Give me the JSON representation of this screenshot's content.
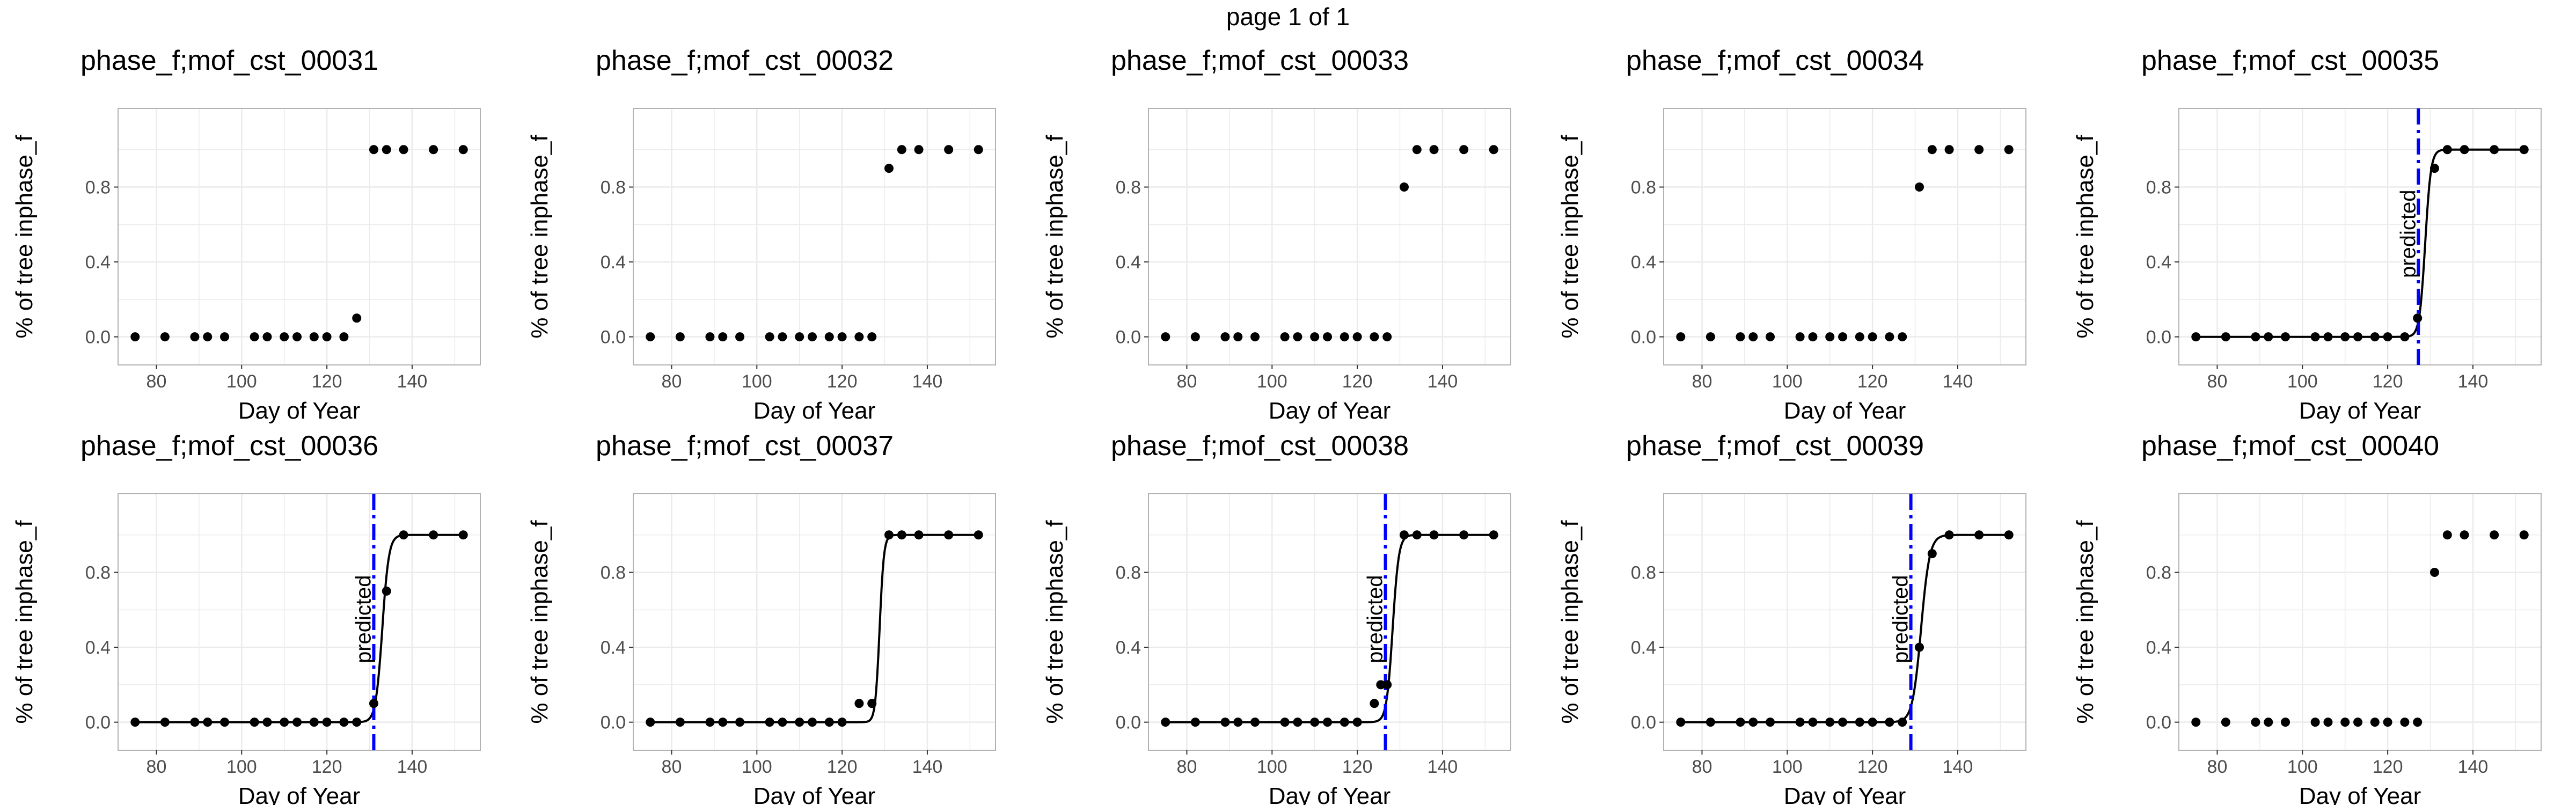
{
  "page_title": "page 1 of 1",
  "colors": {
    "points": "#000000",
    "fit_line": "#000000",
    "prediction_line": "#0000ff",
    "grid": "#ebebeb",
    "panel_border": "#b3b3b3"
  },
  "chart_data": [
    {
      "type": "scatter",
      "title": "phase_f;mof_cst_00031",
      "xlabel": "Day of Year",
      "ylabel": "% of tree inphase_f",
      "xlim": [
        71,
        156
      ],
      "ylim": [
        -0.15,
        1.22
      ],
      "xticks": [
        80,
        100,
        120,
        140
      ],
      "yticks": [
        "0.0",
        "0.4",
        "0.8"
      ],
      "x": [
        75,
        82,
        89,
        92,
        96,
        103,
        106,
        110,
        113,
        117,
        120,
        124,
        127,
        131,
        134,
        138,
        145,
        152
      ],
      "y": [
        0,
        0,
        0,
        0,
        0,
        0,
        0,
        0,
        0,
        0,
        0,
        0,
        0.1,
        1,
        1,
        1,
        1,
        1
      ],
      "fit": false,
      "predicted_day": null,
      "predicted_label": ""
    },
    {
      "type": "scatter",
      "title": "phase_f;mof_cst_00032",
      "xlabel": "Day of Year",
      "ylabel": "% of tree inphase_f",
      "xlim": [
        71,
        156
      ],
      "ylim": [
        -0.15,
        1.22
      ],
      "xticks": [
        80,
        100,
        120,
        140
      ],
      "yticks": [
        "0.0",
        "0.4",
        "0.8"
      ],
      "x": [
        75,
        82,
        89,
        92,
        96,
        103,
        106,
        110,
        113,
        117,
        120,
        124,
        127,
        131,
        134,
        138,
        145,
        152
      ],
      "y": [
        0,
        0,
        0,
        0,
        0,
        0,
        0,
        0,
        0,
        0,
        0,
        0,
        0,
        0.9,
        1,
        1,
        1,
        1
      ],
      "fit": false,
      "predicted_day": null,
      "predicted_label": ""
    },
    {
      "type": "scatter",
      "title": "phase_f;mof_cst_00033",
      "xlabel": "Day of Year",
      "ylabel": "% of tree inphase_f",
      "xlim": [
        71,
        156
      ],
      "ylim": [
        -0.15,
        1.22
      ],
      "xticks": [
        80,
        100,
        120,
        140
      ],
      "yticks": [
        "0.0",
        "0.4",
        "0.8"
      ],
      "x": [
        75,
        82,
        89,
        92,
        96,
        103,
        106,
        110,
        113,
        117,
        120,
        124,
        127,
        131,
        134,
        138,
        145,
        152
      ],
      "y": [
        0,
        0,
        0,
        0,
        0,
        0,
        0,
        0,
        0,
        0,
        0,
        0,
        0,
        0.8,
        1,
        1,
        1,
        1
      ],
      "fit": false,
      "predicted_day": null,
      "predicted_label": ""
    },
    {
      "type": "scatter",
      "title": "phase_f;mof_cst_00034",
      "xlabel": "Day of Year",
      "ylabel": "% of tree inphase_f",
      "xlim": [
        71,
        156
      ],
      "ylim": [
        -0.15,
        1.22
      ],
      "xticks": [
        80,
        100,
        120,
        140
      ],
      "yticks": [
        "0.0",
        "0.4",
        "0.8"
      ],
      "x": [
        75,
        82,
        89,
        92,
        96,
        103,
        106,
        110,
        113,
        117,
        120,
        124,
        127,
        131,
        134,
        138,
        145,
        152
      ],
      "y": [
        0,
        0,
        0,
        0,
        0,
        0,
        0,
        0,
        0,
        0,
        0,
        0,
        0,
        0.8,
        1,
        1,
        1,
        1
      ],
      "fit": false,
      "predicted_day": null,
      "predicted_label": ""
    },
    {
      "type": "scatter",
      "title": "phase_f;mof_cst_00035",
      "xlabel": "Day of Year",
      "ylabel": "% of tree inphase_f",
      "xlim": [
        71,
        156
      ],
      "ylim": [
        -0.15,
        1.22
      ],
      "xticks": [
        80,
        100,
        120,
        140
      ],
      "yticks": [
        "0.0",
        "0.4",
        "0.8"
      ],
      "x": [
        75,
        82,
        89,
        92,
        96,
        103,
        106,
        110,
        113,
        117,
        120,
        124,
        127,
        131,
        134,
        138,
        145,
        152
      ],
      "y": [
        0,
        0,
        0,
        0,
        0,
        0,
        0,
        0,
        0,
        0,
        0,
        0,
        0.1,
        0.9,
        1,
        1,
        1,
        1
      ],
      "fit": true,
      "fit_midpoint": 128.8,
      "fit_rate": 1.5,
      "predicted_day": 127.2,
      "predicted_label": "predicted"
    },
    {
      "type": "scatter",
      "title": "phase_f;mof_cst_00036",
      "xlabel": "Day of Year",
      "ylabel": "% of tree inphase_f",
      "xlim": [
        71,
        156
      ],
      "ylim": [
        -0.15,
        1.22
      ],
      "xticks": [
        80,
        100,
        120,
        140
      ],
      "yticks": [
        "0.0",
        "0.4",
        "0.8"
      ],
      "x": [
        75,
        82,
        89,
        92,
        96,
        103,
        106,
        110,
        113,
        117,
        120,
        124,
        127,
        131,
        134,
        138,
        145,
        152
      ],
      "y": [
        0,
        0,
        0,
        0,
        0,
        0,
        0,
        0,
        0,
        0,
        0,
        0,
        0,
        0.1,
        0.7,
        1,
        1,
        1
      ],
      "fit": true,
      "fit_midpoint": 133.0,
      "fit_rate": 1.3,
      "predicted_day": 131.0,
      "predicted_label": "predicted"
    },
    {
      "type": "scatter",
      "title": "phase_f;mof_cst_00037",
      "xlabel": "Day of Year",
      "ylabel": "% of tree inphase_f",
      "xlim": [
        71,
        156
      ],
      "ylim": [
        -0.15,
        1.22
      ],
      "xticks": [
        80,
        100,
        120,
        140
      ],
      "yticks": [
        "0.0",
        "0.4",
        "0.8"
      ],
      "x": [
        75,
        82,
        89,
        92,
        96,
        103,
        106,
        110,
        113,
        117,
        120,
        124,
        127,
        131,
        134,
        138,
        145,
        152
      ],
      "y": [
        0,
        0,
        0,
        0,
        0,
        0,
        0,
        0,
        0,
        0,
        0,
        0.1,
        0.1,
        1,
        1,
        1,
        1,
        1
      ],
      "fit": true,
      "fit_midpoint": 128.8,
      "fit_rate": 2.0,
      "predicted_day": null,
      "predicted_label": ""
    },
    {
      "type": "scatter",
      "title": "phase_f;mof_cst_00038",
      "xlabel": "Day of Year",
      "ylabel": "% of tree inphase_f",
      "xlim": [
        71,
        156
      ],
      "ylim": [
        -0.15,
        1.22
      ],
      "xticks": [
        80,
        100,
        120,
        140
      ],
      "yticks": [
        "0.0",
        "0.4",
        "0.8"
      ],
      "x": [
        75,
        82,
        89,
        92,
        96,
        103,
        106,
        110,
        113,
        117,
        120,
        124,
        125.5,
        127,
        131,
        134,
        138,
        145,
        152
      ],
      "y": [
        0,
        0,
        0,
        0,
        0,
        0,
        0,
        0,
        0,
        0,
        0,
        0.1,
        0.2,
        0.2,
        1,
        1,
        1,
        1,
        1
      ],
      "fit": true,
      "fit_midpoint": 128.3,
      "fit_rate": 1.4,
      "predicted_day": 126.6,
      "predicted_label": "predicted"
    },
    {
      "type": "scatter",
      "title": "phase_f;mof_cst_00039",
      "xlabel": "Day of Year",
      "ylabel": "% of tree inphase_f",
      "xlim": [
        71,
        156
      ],
      "ylim": [
        -0.15,
        1.22
      ],
      "xticks": [
        80,
        100,
        120,
        140
      ],
      "yticks": [
        "0.0",
        "0.4",
        "0.8"
      ],
      "x": [
        75,
        82,
        89,
        92,
        96,
        103,
        106,
        110,
        113,
        117,
        120,
        124,
        127,
        131,
        134,
        138,
        145,
        152
      ],
      "y": [
        0,
        0,
        0,
        0,
        0,
        0,
        0,
        0,
        0,
        0,
        0,
        0,
        0,
        0.4,
        0.9,
        1,
        1,
        1
      ],
      "fit": true,
      "fit_midpoint": 131.4,
      "fit_rate": 1.0,
      "predicted_day": 129.0,
      "predicted_label": "predicted"
    },
    {
      "type": "scatter",
      "title": "phase_f;mof_cst_00040",
      "xlabel": "Day of Year",
      "ylabel": "% of tree inphase_f",
      "xlim": [
        71,
        156
      ],
      "ylim": [
        -0.15,
        1.22
      ],
      "xticks": [
        80,
        100,
        120,
        140
      ],
      "yticks": [
        "0.0",
        "0.4",
        "0.8"
      ],
      "x": [
        75,
        82,
        89,
        92,
        96,
        103,
        106,
        110,
        113,
        117,
        120,
        124,
        127,
        131,
        134,
        138,
        145,
        152
      ],
      "y": [
        0,
        0,
        0,
        0,
        0,
        0,
        0,
        0,
        0,
        0,
        0,
        0,
        0,
        0.8,
        1,
        1,
        1,
        1
      ],
      "fit": false,
      "predicted_day": null,
      "predicted_label": ""
    }
  ]
}
